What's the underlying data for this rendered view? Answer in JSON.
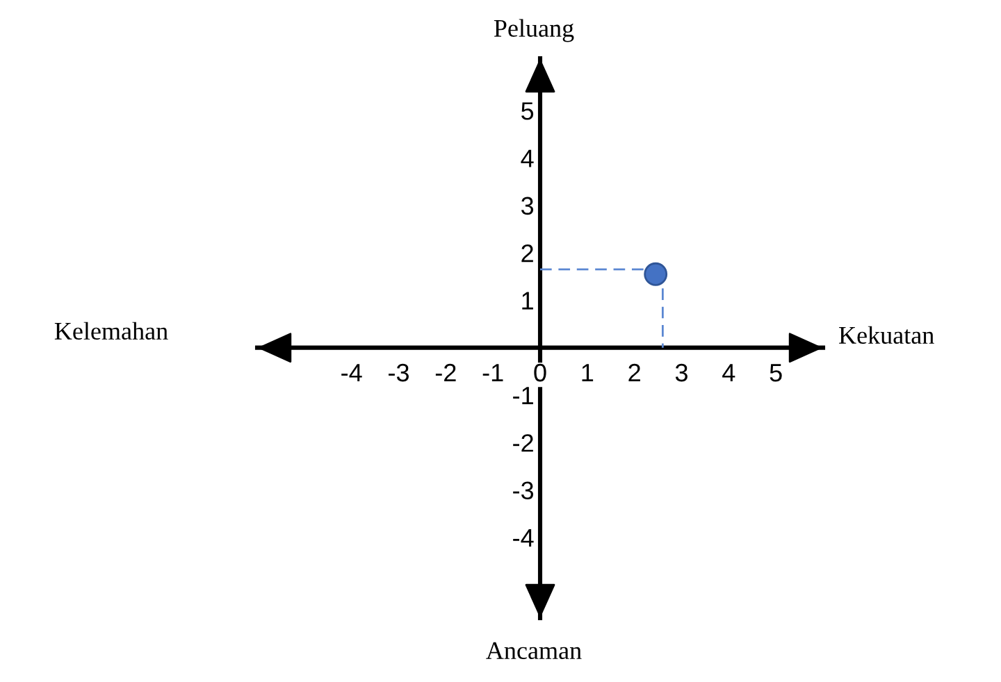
{
  "chart_data": {
    "type": "scatter",
    "annotations": [
      "Peluang",
      "Kelemahan",
      "Kekuatan",
      "Ancaman"
    ],
    "xlim": [
      -6,
      6
    ],
    "ylim": [
      -5.7,
      6.1
    ],
    "xticks": [
      -4,
      -3,
      -2,
      -1,
      0,
      1,
      2,
      3,
      4,
      5
    ],
    "yticks": [
      -4,
      -3,
      -2,
      -1,
      1,
      2,
      3,
      4,
      5
    ],
    "series": [
      {
        "type": "line",
        "color": "#5b87d2",
        "x": [
          0,
          2.2
        ],
        "values": [
          1.65,
          1.65
        ],
        "line_style": "dashed"
      },
      {
        "type": "line",
        "color": "#5b87d2",
        "x": [
          2.6,
          2.6
        ],
        "values": [
          1.25,
          0
        ],
        "line_style": "dashed"
      },
      {
        "color": "#4472c4",
        "x": [
          2.45
        ],
        "values": [
          1.55
        ],
        "marker": "circle"
      }
    ]
  }
}
